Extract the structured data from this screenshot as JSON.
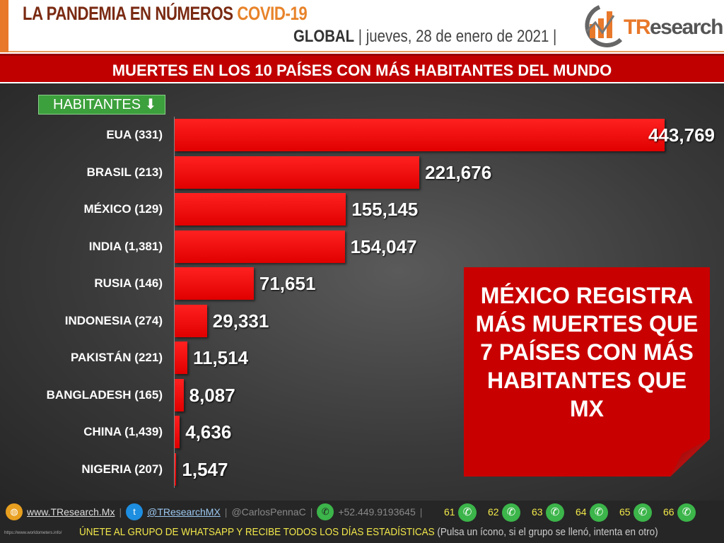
{
  "header": {
    "title": "LA PANDEMIA EN NÚMEROS",
    "title_highlight": "COVID-19",
    "scope": "GLOBAL",
    "date": "jueves, 28 de enero de 2021",
    "logo": "TResearch"
  },
  "banner": "MUERTES EN LOS 10 PAÍSES CON MÁS HABITANTES DEL MUNDO",
  "habitantes_label": "HABITANTES",
  "chart_data": {
    "type": "bar",
    "orientation": "horizontal",
    "categories": [
      "EUA (331)",
      "BRASIL (213)",
      "MÉXICO (129)",
      "INDIA (1,381)",
      "RUSIA (146)",
      "INDONESIA (274)",
      "PAKISTÁN (221)",
      "BANGLADESH (165)",
      "CHINA (1,439)",
      "NIGERIA (207)"
    ],
    "values": [
      443769,
      221676,
      155145,
      154047,
      71651,
      29331,
      11514,
      8087,
      4636,
      1547
    ],
    "labels": [
      "443,769",
      "221,676",
      "155,145",
      "154,047",
      "71,651",
      "29,331",
      "11,514",
      "8,087",
      "4,636",
      "1,547"
    ],
    "bar_color": "#ff0000",
    "grid": false
  },
  "callout": "MÉXICO REGISTRA MÁS MUERTES QUE 7 PAÍSES CON MÁS HABITANTES QUE MX",
  "footer": {
    "website": "www.TResearch.Mx",
    "twitter": "@TResearchMX",
    "twitter2": "@CarlosPennaC",
    "phone": "+52.449.9193645",
    "groups": [
      "61",
      "62",
      "63",
      "64",
      "65",
      "66"
    ],
    "source": "https://www.worldometers.info/",
    "cta": "ÚNETE AL GRUPO DE WHATSAPP Y RECIBE TODOS LOS DÍAS ESTADÍSTICAS",
    "cta_note": "(Pulsa un ícono, si el grupo se llenó, intenta en otro)"
  }
}
